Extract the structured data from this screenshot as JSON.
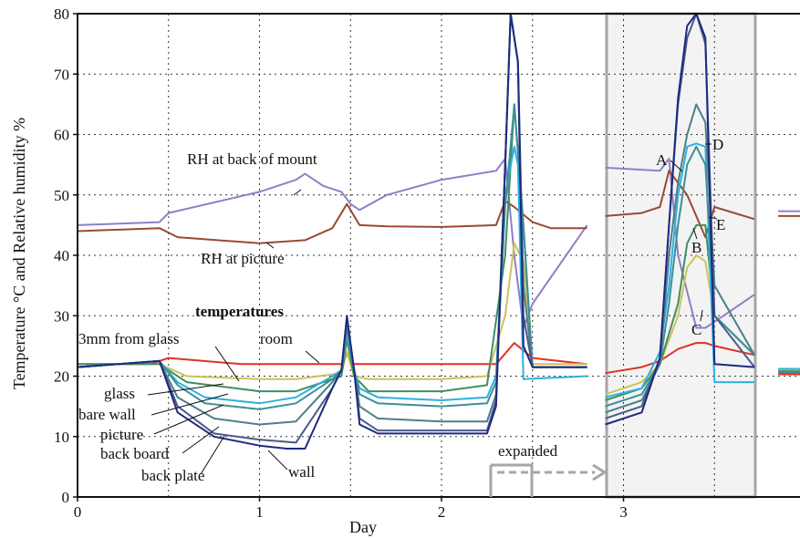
{
  "chart_data": {
    "type": "line",
    "title": "",
    "xlabel": "Day",
    "ylabel": "Temperature °C and Relative humidity %",
    "xlim": [
      0,
      4
    ],
    "ylim": [
      0,
      80
    ],
    "x_ticks": [
      "0",
      "1",
      "2",
      "3"
    ],
    "y_ticks": [
      "0",
      "10",
      "20",
      "30",
      "40",
      "50",
      "60",
      "70",
      "80"
    ],
    "grid": true,
    "legend": "none (series labelled directly on the plot)",
    "colors": {
      "rh_mount": "#8f7fc4",
      "rh_picture": "#9a4a33",
      "room": "#e0302a",
      "glass3mm": "#cbc35a",
      "glass": "#3f8f60",
      "bare_wall": "#2fb0e0",
      "picture": "#3d8f98",
      "back_board": "#4c7f8a",
      "back_plate": "#4a5a8c",
      "wall": "#1f2a80",
      "expanded_panel": "#f3f3f3",
      "expanded_border": "#a6a6a6"
    },
    "annotations": {
      "rh_mount_label": "RH at back of mount",
      "rh_picture_label": "RH at picture",
      "temperatures_heading": "temperatures",
      "glass3mm_label": "3mm from glass",
      "room_label": "room",
      "glass_label": "glass",
      "bare_wall_label": "bare wall",
      "picture_label": "picture",
      "back_board_label": "back board",
      "back_plate_label": "back plate",
      "wall_label": "wall",
      "expanded_label": "expanded",
      "point_a": "A",
      "point_b": "B",
      "point_c": "C",
      "point_d": "D",
      "point_e": "E"
    },
    "series": [
      {
        "name": "RH at back of mount",
        "x": [
          0,
          0.45,
          0.5,
          1,
          1.2,
          1.25,
          1.35,
          1.45,
          1.5,
          1.55,
          1.7,
          2,
          2.3,
          2.35,
          2.4,
          2.45,
          2.5,
          2.8
        ],
        "y": [
          45,
          45.5,
          47,
          50.5,
          52.5,
          53.5,
          51.5,
          50.5,
          48.5,
          47.5,
          50,
          52.5,
          54,
          56,
          40,
          28,
          32,
          45
        ]
      },
      {
        "name": "RH at picture",
        "x": [
          0,
          0.45,
          0.55,
          1,
          1.25,
          1.4,
          1.48,
          1.55,
          1.7,
          2,
          2.3,
          2.35,
          2.4,
          2.5,
          2.6,
          2.8
        ],
        "y": [
          44,
          44.5,
          43,
          42,
          42.5,
          44.5,
          48.5,
          45,
          44.8,
          44.7,
          45,
          49,
          48,
          45.5,
          44.5,
          44.5
        ]
      },
      {
        "name": "room",
        "x": [
          0,
          0.4,
          0.5,
          0.9,
          1.45,
          1.48,
          1.52,
          2,
          2.3,
          2.4,
          2.5,
          2.8
        ],
        "y": [
          22,
          22,
          23,
          22,
          22,
          23.5,
          22,
          22,
          22,
          25.5,
          23,
          22
        ]
      },
      {
        "name": "3mm from glass",
        "x": [
          0,
          0.45,
          0.6,
          1,
          1.2,
          1.45,
          1.48,
          1.52,
          1.6,
          2,
          2.25,
          2.35,
          2.4,
          2.45,
          2.5,
          2.8
        ],
        "y": [
          22,
          22,
          20,
          19.5,
          19.5,
          20.5,
          24,
          20,
          19.5,
          19.5,
          20,
          30,
          42,
          39,
          22,
          22
        ]
      },
      {
        "name": "glass",
        "x": [
          0,
          0.45,
          0.6,
          1,
          1.2,
          1.45,
          1.48,
          1.52,
          1.6,
          2,
          2.25,
          2.35,
          2.4,
          2.45,
          2.5,
          2.8
        ],
        "y": [
          22,
          22,
          19,
          17.5,
          17.5,
          20,
          26,
          20,
          17.5,
          17.5,
          18.5,
          40,
          65,
          45,
          21.5,
          21.5
        ]
      },
      {
        "name": "bare wall",
        "x": [
          0,
          0.45,
          0.55,
          0.7,
          1,
          1.2,
          1.4,
          1.45,
          1.48,
          1.52,
          1.55,
          1.65,
          2,
          2.25,
          2.3,
          2.35,
          2.4,
          2.42,
          2.45,
          2.8
        ],
        "y": [
          21.5,
          22.5,
          19,
          16.5,
          15.5,
          16.5,
          20,
          21,
          27,
          21,
          18,
          16.5,
          16,
          16.5,
          20,
          50,
          58,
          55,
          19.5,
          20
        ]
      },
      {
        "name": "picture",
        "x": [
          0,
          0.45,
          0.55,
          0.7,
          1,
          1.2,
          1.4,
          1.45,
          1.48,
          1.52,
          1.55,
          1.65,
          2,
          2.25,
          2.3,
          2.35,
          2.4,
          2.45,
          2.5,
          2.8
        ],
        "y": [
          21.5,
          22.5,
          18.5,
          15.5,
          14.5,
          15.5,
          19.5,
          21,
          28,
          21,
          17,
          15.5,
          15,
          15.5,
          19,
          48,
          65,
          45,
          21.5,
          21.5
        ]
      },
      {
        "name": "back board",
        "x": [
          0,
          0.45,
          0.55,
          0.75,
          1,
          1.2,
          1.4,
          1.45,
          1.48,
          1.52,
          1.55,
          1.65,
          2,
          2.25,
          2.3,
          2.35,
          2.38,
          2.42,
          2.45,
          2.5,
          2.8
        ],
        "y": [
          21.5,
          22.5,
          16.5,
          13,
          12,
          12.5,
          19,
          21,
          29,
          21,
          15,
          13,
          12.5,
          12.5,
          17,
          55,
          80,
          72,
          35,
          21.5,
          21.5
        ]
      },
      {
        "name": "back plate",
        "x": [
          0,
          0.45,
          0.55,
          0.75,
          1,
          1.2,
          1.4,
          1.45,
          1.48,
          1.52,
          1.55,
          1.65,
          2,
          2.25,
          2.3,
          2.35,
          2.38,
          2.42,
          2.45,
          2.5,
          2.8
        ],
        "y": [
          21.5,
          22.5,
          15,
          10.5,
          9.5,
          9,
          18,
          21,
          29.5,
          21,
          13,
          11,
          11,
          11,
          16,
          55,
          80,
          72,
          30,
          21.5,
          21.5
        ]
      },
      {
        "name": "wall",
        "x": [
          0,
          0.45,
          0.55,
          0.75,
          1,
          1.15,
          1.25,
          1.4,
          1.45,
          1.48,
          1.52,
          1.55,
          1.65,
          2,
          2.25,
          2.3,
          2.35,
          2.38,
          2.42,
          2.45,
          2.5,
          2.8
        ],
        "y": [
          21.5,
          22.5,
          14,
          10,
          8.5,
          8,
          8,
          18,
          21,
          30,
          21,
          12,
          10.5,
          10.5,
          10.5,
          15,
          55,
          80,
          72,
          25,
          21.5,
          21.5
        ]
      }
    ],
    "expanded_series": [
      {
        "name": "RH at back of mount",
        "x": [
          2.9,
          3.2,
          3.25,
          3.3,
          3.4,
          3.45,
          3.5,
          3.72
        ],
        "y": [
          54.5,
          54,
          56,
          40,
          28,
          28,
          29,
          33.5
        ]
      },
      {
        "name": "RH at picture",
        "x": [
          2.9,
          3.1,
          3.2,
          3.25,
          3.3,
          3.35,
          3.45,
          3.5,
          3.72
        ],
        "y": [
          46.5,
          47,
          48,
          54,
          52,
          50,
          43,
          48,
          46
        ]
      },
      {
        "name": "room",
        "x": [
          2.9,
          3.1,
          3.2,
          3.3,
          3.4,
          3.45,
          3.5,
          3.72
        ],
        "y": [
          20.5,
          21.5,
          22.5,
          24.5,
          25.5,
          25.5,
          25,
          23.5
        ]
      },
      {
        "name": "3mm from glass",
        "x": [
          2.9,
          3.1,
          3.2,
          3.3,
          3.35,
          3.4,
          3.45,
          3.5,
          3.72
        ],
        "y": [
          17,
          19,
          22,
          30,
          38,
          40,
          39,
          30,
          23.5
        ]
      },
      {
        "name": "glass",
        "x": [
          2.9,
          3.1,
          3.2,
          3.3,
          3.35,
          3.4,
          3.45,
          3.5,
          3.72
        ],
        "y": [
          16,
          18,
          22,
          32,
          42,
          45,
          45,
          30,
          23.5
        ]
      },
      {
        "name": "bare wall",
        "x": [
          2.9,
          3.1,
          3.2,
          3.25,
          3.3,
          3.35,
          3.4,
          3.45,
          3.5,
          3.72
        ],
        "y": [
          16.5,
          18,
          24,
          35,
          50,
          58,
          58.5,
          58,
          19,
          19
        ]
      },
      {
        "name": "picture",
        "x": [
          2.9,
          3.1,
          3.2,
          3.25,
          3.3,
          3.35,
          3.4,
          3.45,
          3.5,
          3.72
        ],
        "y": [
          15,
          17,
          22,
          32,
          45,
          55,
          58,
          55,
          30,
          23.5
        ]
      },
      {
        "name": "back board",
        "x": [
          2.9,
          3.1,
          3.2,
          3.25,
          3.3,
          3.35,
          3.4,
          3.45,
          3.5,
          3.72
        ],
        "y": [
          14,
          16,
          22,
          40,
          52,
          60,
          65,
          62,
          35,
          23.5
        ]
      },
      {
        "name": "back plate",
        "x": [
          2.9,
          3.1,
          3.2,
          3.25,
          3.3,
          3.35,
          3.4,
          3.45,
          3.5,
          3.72
        ],
        "y": [
          13,
          15,
          23,
          45,
          65,
          76,
          80,
          75,
          30,
          21.5
        ]
      },
      {
        "name": "wall",
        "x": [
          2.9,
          3.1,
          3.2,
          3.25,
          3.3,
          3.35,
          3.4,
          3.45,
          3.5,
          3.72
        ],
        "y": [
          12,
          14,
          23,
          45,
          66,
          78,
          80,
          76,
          22,
          21.5
        ]
      }
    ],
    "tail_series": [
      {
        "name": "RH at back of mount",
        "x": [
          3.85,
          4
        ],
        "y": [
          47.3,
          47.3
        ]
      },
      {
        "name": "RH at picture",
        "x": [
          3.85,
          4
        ],
        "y": [
          46.5,
          46.5
        ]
      },
      {
        "name": "room",
        "x": [
          3.85,
          4
        ],
        "y": [
          20.3,
          20.3
        ]
      },
      {
        "name": "3mm from glass",
        "x": [
          3.85,
          4
        ],
        "y": [
          21,
          21
        ]
      },
      {
        "name": "glass",
        "x": [
          3.85,
          4
        ],
        "y": [
          20.8,
          20.8
        ]
      },
      {
        "name": "bare wall",
        "x": [
          3.85,
          4
        ],
        "y": [
          21.2,
          21.2
        ]
      },
      {
        "name": "picture",
        "x": [
          3.85,
          4
        ],
        "y": [
          20.6,
          20.6
        ]
      }
    ]
  }
}
